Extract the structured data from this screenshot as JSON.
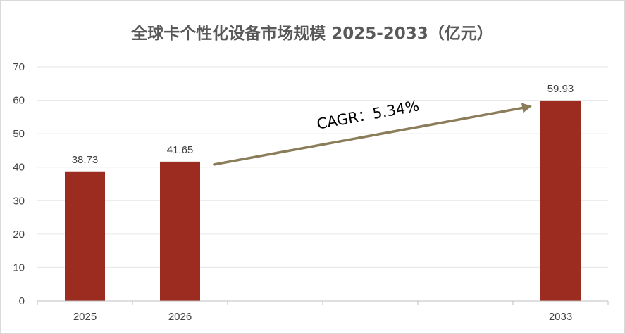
{
  "chart_data": {
    "type": "bar",
    "title": "全球卡个性化设备市场规模 2025-2033（亿元）",
    "categories": [
      "2025",
      "2026",
      "",
      "",
      "",
      "2033"
    ],
    "values": [
      38.73,
      41.65,
      null,
      null,
      null,
      59.93
    ],
    "data_labels": [
      "38.73",
      "41.65",
      "",
      "",
      "",
      "59.93"
    ],
    "ylim": [
      0,
      70
    ],
    "yticks": [
      0,
      10,
      20,
      30,
      40,
      50,
      60,
      70
    ],
    "grid": true,
    "legend": "none",
    "bar_color": "#9c2b20",
    "annotation": {
      "text": "CAGR：5.34%",
      "arrow_color": "#8b7d5a",
      "from_category": "2026",
      "to_category": "2033"
    }
  }
}
